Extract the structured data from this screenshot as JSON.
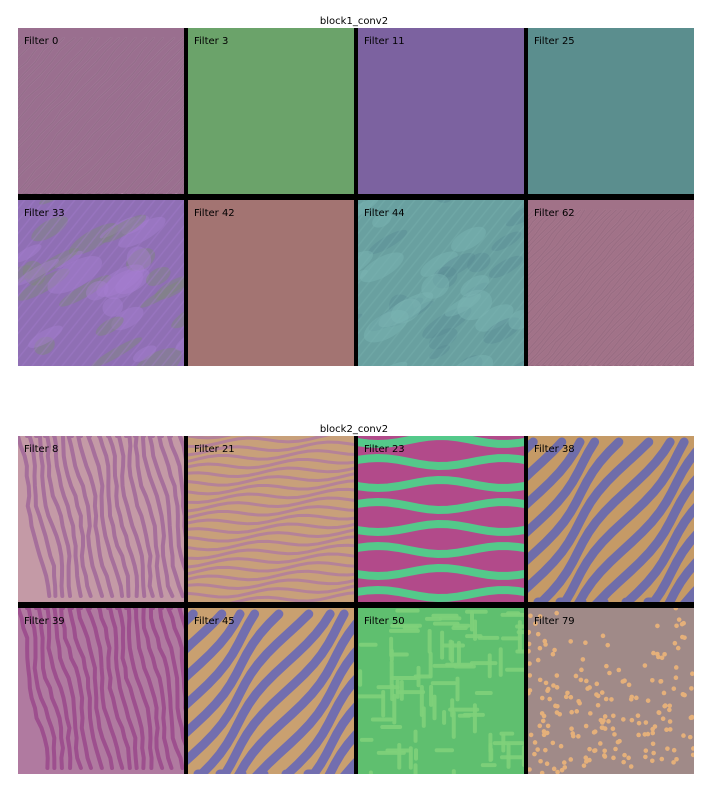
{
  "panels": [
    {
      "title": "block1_conv2",
      "filters": [
        {
          "label": "Filter 0",
          "base": "#9a6f8f",
          "style": "noise-diag",
          "c1": "#b88fae",
          "c2": "#7f5b76"
        },
        {
          "label": "Filter 3",
          "base": "#6ba36a",
          "style": "flat"
        },
        {
          "label": "Filter 11",
          "base": "#7c62a0",
          "style": "flat"
        },
        {
          "label": "Filter 25",
          "base": "#5b8e8e",
          "style": "flat"
        },
        {
          "label": "Filter 33",
          "base": "#8f6fb4",
          "style": "blotchy",
          "c1": "#a77fd0",
          "c2": "#7e8a7a"
        },
        {
          "label": "Filter 42",
          "base": "#a37472",
          "style": "flat"
        },
        {
          "label": "Filter 44",
          "base": "#69a0a0",
          "style": "blotchy",
          "c1": "#7cb5b3",
          "c2": "#5a8b94"
        },
        {
          "label": "Filter 62",
          "base": "#a17288",
          "style": "fine-diag",
          "c1": "#b98da3",
          "c2": "#865a70"
        }
      ]
    },
    {
      "title": "block2_conv2",
      "filters": [
        {
          "label": "Filter 8",
          "base": "#c49aa6",
          "style": "vstripes",
          "c1": "#d7b0a8",
          "c2": "#a36a9a"
        },
        {
          "label": "Filter 21",
          "base": "#c8a07a",
          "style": "hwaves",
          "c1": "#e0b878",
          "c2": "#b07aa0"
        },
        {
          "label": "Filter 23",
          "base": "#b24a8a",
          "style": "hbands",
          "c1": "#4fd08a",
          "c2": "#d23f8a"
        },
        {
          "label": "Filter 38",
          "base": "#c59a66",
          "style": "dstripes",
          "c1": "#e2b466",
          "c2": "#6a6aae"
        },
        {
          "label": "Filter 39",
          "base": "#b07aa0",
          "style": "vstripes",
          "c1": "#cfa9b4",
          "c2": "#9b4a8c"
        },
        {
          "label": "Filter 45",
          "base": "#c9a070",
          "style": "dstripes",
          "c1": "#e6b56a",
          "c2": "#6e6cb2"
        },
        {
          "label": "Filter 50",
          "base": "#5fbf6f",
          "style": "maze",
          "c1": "#7fd07a",
          "c2": "#4aa070"
        },
        {
          "label": "Filter 79",
          "base": "#a08a88",
          "style": "dots",
          "c1": "#e5b07a",
          "c2": "#8a8a8e"
        }
      ]
    }
  ]
}
